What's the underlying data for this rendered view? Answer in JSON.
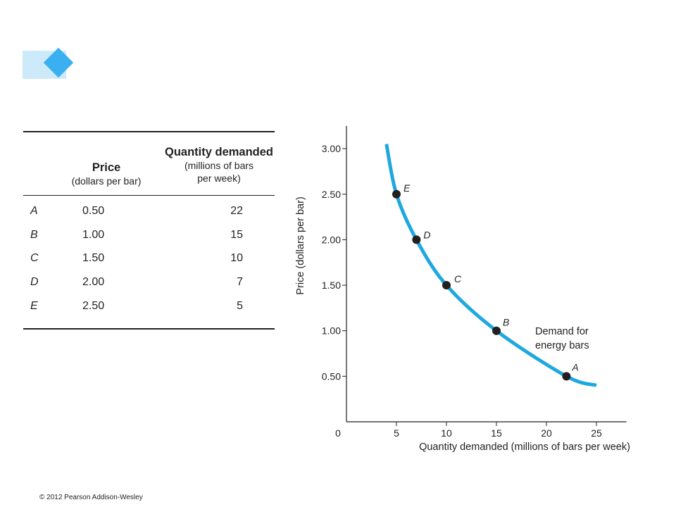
{
  "table": {
    "price_header": "Price",
    "price_sub": "(dollars per bar)",
    "qty_header": "Quantity demanded",
    "qty_sub1": "(millions of bars",
    "qty_sub2": "per week)",
    "rows": [
      {
        "label": "A",
        "price": "0.50",
        "qty": "22"
      },
      {
        "label": "B",
        "price": "1.00",
        "qty": "15"
      },
      {
        "label": "C",
        "price": "1.50",
        "qty": "10"
      },
      {
        "label": "D",
        "price": "2.00",
        "qty": "7"
      },
      {
        "label": "E",
        "price": "2.50",
        "qty": "5"
      }
    ]
  },
  "chart_data": {
    "type": "line",
    "xlabel": "Quantity demanded (millions of bars per week)",
    "ylabel": "Price (dollars per bar)",
    "xlim": [
      0,
      28
    ],
    "ylim": [
      0,
      3.25
    ],
    "x_ticks": [
      "5",
      "10",
      "15",
      "20",
      "25"
    ],
    "x_tick_values": [
      5,
      10,
      15,
      20,
      25
    ],
    "y_ticks": [
      "0.50",
      "1.00",
      "1.50",
      "2.00",
      "2.50",
      "3.00"
    ],
    "y_tick_values": [
      0.5,
      1.0,
      1.5,
      2.0,
      2.5,
      3.0
    ],
    "origin_label": "0",
    "grid": false,
    "curve_label_line1": "Demand for",
    "curve_label_line2": "energy bars",
    "curve_color": "#1fa8e0",
    "curve": [
      {
        "x": 4.0,
        "y": 3.05
      },
      {
        "x": 5,
        "y": 2.5
      },
      {
        "x": 7,
        "y": 2.0
      },
      {
        "x": 10,
        "y": 1.5
      },
      {
        "x": 15,
        "y": 1.0
      },
      {
        "x": 22,
        "y": 0.5
      },
      {
        "x": 25,
        "y": 0.4
      }
    ],
    "points": [
      {
        "label": "A",
        "x": 22,
        "y": 0.5
      },
      {
        "label": "B",
        "x": 15,
        "y": 1.0
      },
      {
        "label": "C",
        "x": 10,
        "y": 1.5
      },
      {
        "label": "D",
        "x": 7,
        "y": 2.0
      },
      {
        "label": "E",
        "x": 5,
        "y": 2.5
      }
    ]
  },
  "footer": {
    "copyright": "© 2012 Pearson Addison-Wesley"
  }
}
